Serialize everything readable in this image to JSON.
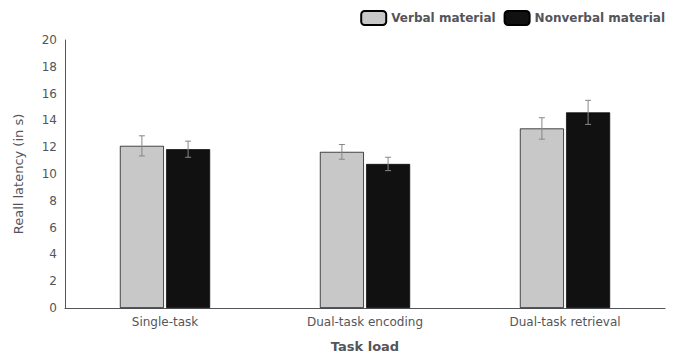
{
  "chart_data": {
    "type": "bar",
    "categories": [
      "Single-task",
      "Dual-task encoding",
      "Dual-task retrieval"
    ],
    "series": [
      {
        "name": "Verbal material",
        "color": "#c8c8c8",
        "values": [
          12.1,
          11.65,
          13.4
        ],
        "errors": [
          0.75,
          0.55,
          0.8
        ]
      },
      {
        "name": "Nonverbal material",
        "color": "#111111",
        "values": [
          11.85,
          10.75,
          14.6
        ],
        "errors": [
          0.6,
          0.5,
          0.9
        ]
      }
    ],
    "xlabel": "Task load",
    "ylabel": "Reall latency (in s)",
    "ylim": [
      0,
      20
    ],
    "yticks": [
      0,
      2,
      4,
      6,
      8,
      10,
      12,
      14,
      16,
      18,
      20
    ],
    "grid": false,
    "legend": "upper right"
  }
}
